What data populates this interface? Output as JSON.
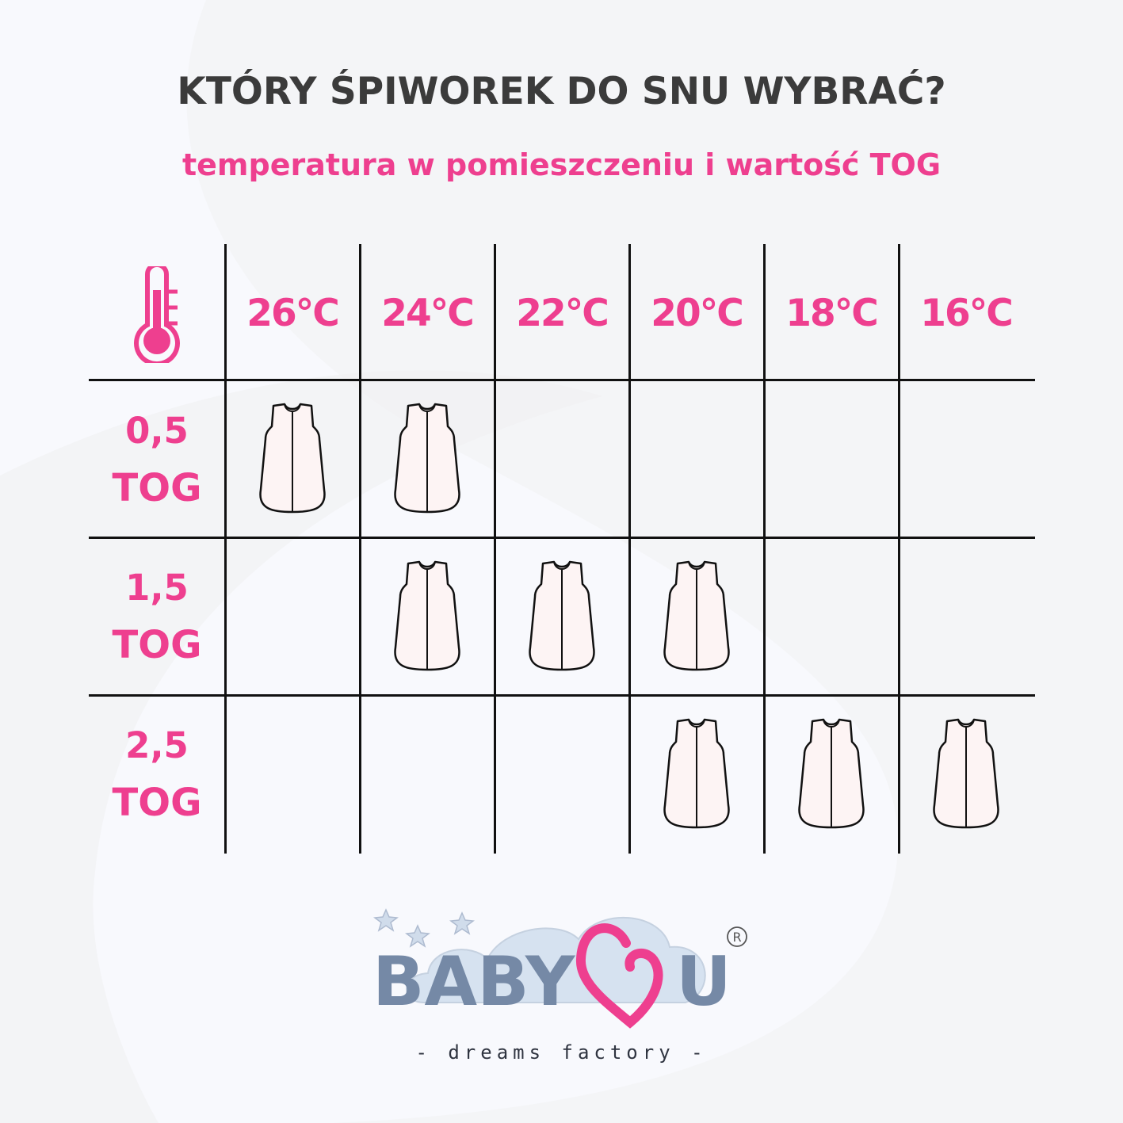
{
  "header": {
    "title": "KTÓRY ŚPIWOREK DO SNU WYBRAĆ?",
    "subtitle": "temperatura w pomieszczeniu i wartość TOG"
  },
  "table": {
    "corner_icon": "thermometer-icon",
    "temperatures": [
      "26°C",
      "24°C",
      "22°C",
      "20°C",
      "18°C",
      "16°C"
    ],
    "rows": [
      {
        "tog": "0,5",
        "unit": "TOG",
        "recommended": [
          true,
          true,
          false,
          false,
          false,
          false
        ]
      },
      {
        "tog": "1,5",
        "unit": "TOG",
        "recommended": [
          false,
          true,
          true,
          true,
          false,
          false
        ]
      },
      {
        "tog": "2,5",
        "unit": "TOG",
        "recommended": [
          false,
          false,
          false,
          true,
          true,
          true
        ]
      }
    ],
    "mark_icon": "sleeping-bag-icon"
  },
  "logo": {
    "brand": "BABY LOVE U",
    "registered": "®",
    "tagline": "- dreams factory -"
  },
  "colors": {
    "accent": "#ee3f8f",
    "title": "#3b3b3b",
    "logo_text": "#7589a6",
    "cloud": "#d6e2f0",
    "grid": "#111111"
  }
}
